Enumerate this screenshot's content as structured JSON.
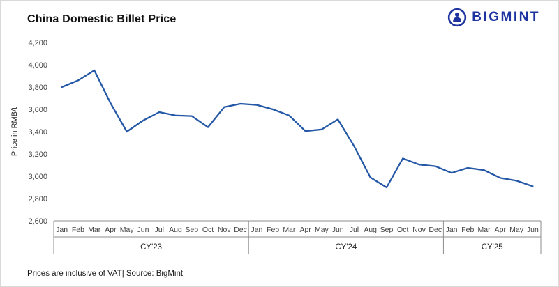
{
  "header": {
    "title": "China Domestic Billet Price"
  },
  "logo": {
    "text": "BIGMINT",
    "color": "#1d33a0"
  },
  "footer": {
    "note": "Prices are inclusive of VAT| Source: BigMint"
  },
  "chart_data": {
    "type": "line",
    "title": "China Domestic Billet Price",
    "xlabel": "",
    "ylabel": "Price in RMB/t",
    "ylim": [
      2600,
      4200
    ],
    "ytick_step": 200,
    "grid": false,
    "legend_position": "none",
    "line_color": "#2458a6",
    "categories": [
      "Jan",
      "Feb",
      "Mar",
      "Apr",
      "May",
      "Jun",
      "Jul",
      "Aug",
      "Sep",
      "Oct",
      "Nov",
      "Dec",
      "Jan",
      "Feb",
      "Mar",
      "Apr",
      "May",
      "Jun",
      "Jul",
      "Aug",
      "Sep",
      "Oct",
      "Nov",
      "Dec",
      "Jan",
      "Feb",
      "Mar",
      "Apr",
      "May",
      "Jun"
    ],
    "year_groups": [
      {
        "label": "CY'23",
        "months": 12
      },
      {
        "label": "CY'24",
        "months": 12
      },
      {
        "label": "CY'25",
        "months": 6
      }
    ],
    "values": [
      3800,
      3860,
      3950,
      3655,
      3400,
      3500,
      3575,
      3545,
      3540,
      3440,
      3620,
      3650,
      3640,
      3600,
      3545,
      3405,
      3420,
      3510,
      3270,
      2990,
      2900,
      3160,
      3105,
      3090,
      3030,
      3075,
      3055,
      2985,
      2960,
      2910
    ]
  }
}
